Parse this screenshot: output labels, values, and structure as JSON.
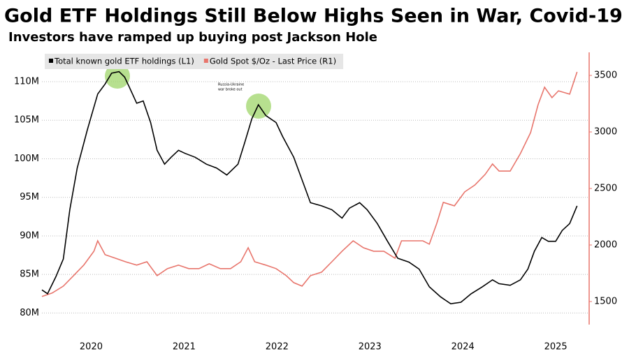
{
  "chart_data": {
    "type": "line",
    "title": "Gold ETF Holdings Still Below Highs Seen in War, Covid-19",
    "subtitle": "Investors have ramped up buying post Jackson Hole",
    "annotations": [
      "Covid-19",
      "Russia-Ukraine",
      "war broke out"
    ],
    "grid": true,
    "legend": "top-left",
    "xlim": [
      2019.97,
      2025.86
    ],
    "xticks": [
      {
        "value": 2020.5,
        "label": "2020"
      },
      {
        "value": 2021.5,
        "label": "2021"
      },
      {
        "value": 2022.5,
        "label": "2022"
      },
      {
        "value": 2023.5,
        "label": "2023"
      },
      {
        "value": 2024.5,
        "label": "2024"
      },
      {
        "value": 2025.5,
        "label": "2025"
      }
    ],
    "ylim": [
      78500000,
      113800000
    ],
    "yticks": [
      {
        "value": 80000000,
        "label": "80M"
      },
      {
        "value": 85000000,
        "label": "85M"
      },
      {
        "value": 90000000,
        "label": "90M"
      },
      {
        "value": 95000000,
        "label": "95M"
      },
      {
        "value": 100000000,
        "label": "100M"
      },
      {
        "value": 105000000,
        "label": "105M"
      },
      {
        "value": 110000000,
        "label": "110M"
      }
    ],
    "y2lim": [
      1296,
      3704
    ],
    "y2ticks": [
      1500,
      2000,
      2500,
      3000,
      3500
    ],
    "series": [
      {
        "name": "Total known gold ETF holdings (L1)",
        "color": "#000000",
        "axis": "y",
        "x": [
          2019.97,
          2020.03,
          2020.12,
          2020.2,
          2020.27,
          2020.35,
          2020.46,
          2020.57,
          2020.65,
          2020.72,
          2020.8,
          2020.86,
          2020.91,
          2020.99,
          2021.06,
          2021.14,
          2021.21,
          2021.29,
          2021.36,
          2021.44,
          2021.51,
          2021.62,
          2021.74,
          2021.85,
          2021.96,
          2022.08,
          2022.15,
          2022.23,
          2022.3,
          2022.38,
          2022.49,
          2022.56,
          2022.68,
          2022.79,
          2022.86,
          2022.98,
          2023.09,
          2023.2,
          2023.28,
          2023.39,
          2023.47,
          2023.58,
          2023.69,
          2023.8,
          2023.92,
          2024.03,
          2024.14,
          2024.26,
          2024.37,
          2024.48,
          2024.59,
          2024.71,
          2024.82,
          2024.89,
          2025.01,
          2025.12,
          2025.2,
          2025.27,
          2025.35,
          2025.42,
          2025.5,
          2025.57,
          2025.65,
          2025.73
        ],
        "values": [
          83000000,
          82500000,
          84700000,
          87000000,
          93400000,
          98800000,
          103800000,
          108400000,
          109700000,
          111100000,
          111300000,
          110600000,
          109300000,
          107200000,
          107500000,
          104700000,
          101100000,
          99300000,
          100200000,
          101100000,
          100700000,
          100200000,
          99300000,
          98800000,
          97900000,
          99300000,
          102000000,
          105200000,
          107000000,
          105600000,
          104700000,
          102900000,
          100200000,
          96600000,
          94300000,
          93900000,
          93400000,
          92300000,
          93600000,
          94300000,
          93400000,
          91600000,
          89300000,
          87100000,
          86600000,
          85700000,
          83400000,
          82100000,
          81200000,
          81400000,
          82500000,
          83400000,
          84300000,
          83800000,
          83600000,
          84300000,
          85700000,
          88000000,
          89800000,
          89300000,
          89300000,
          90700000,
          91600000,
          93900000
        ]
      },
      {
        "name": "Gold Spot $/Oz - Last Price (R1)",
        "color": "#e8756c",
        "axis": "y2",
        "x": [
          2019.97,
          2020.08,
          2020.2,
          2020.31,
          2020.42,
          2020.53,
          2020.57,
          2020.65,
          2020.76,
          2020.87,
          2020.99,
          2021.1,
          2021.21,
          2021.32,
          2021.44,
          2021.55,
          2021.66,
          2021.77,
          2021.89,
          2022.0,
          2022.11,
          2022.19,
          2022.26,
          2022.38,
          2022.49,
          2022.6,
          2022.68,
          2022.77,
          2022.86,
          2022.98,
          2023.09,
          2023.2,
          2023.32,
          2023.43,
          2023.54,
          2023.65,
          2023.77,
          2023.84,
          2023.95,
          2024.07,
          2024.14,
          2024.22,
          2024.29,
          2024.41,
          2024.52,
          2024.63,
          2024.74,
          2024.82,
          2024.89,
          2025.01,
          2025.12,
          2025.23,
          2025.31,
          2025.38,
          2025.46,
          2025.53,
          2025.65,
          2025.73
        ],
        "values": [
          1544,
          1575,
          1636,
          1729,
          1822,
          1945,
          2037,
          1914,
          1883,
          1852,
          1822,
          1852,
          1729,
          1791,
          1822,
          1791,
          1791,
          1834,
          1791,
          1791,
          1852,
          1976,
          1852,
          1822,
          1791,
          1729,
          1667,
          1636,
          1729,
          1760,
          1852,
          1945,
          2037,
          1976,
          1945,
          1945,
          1883,
          2037,
          2037,
          2037,
          2007,
          2192,
          2377,
          2346,
          2470,
          2531,
          2624,
          2717,
          2654,
          2654,
          2809,
          2994,
          3241,
          3395,
          3303,
          3364,
          3334,
          3531
        ]
      }
    ]
  }
}
